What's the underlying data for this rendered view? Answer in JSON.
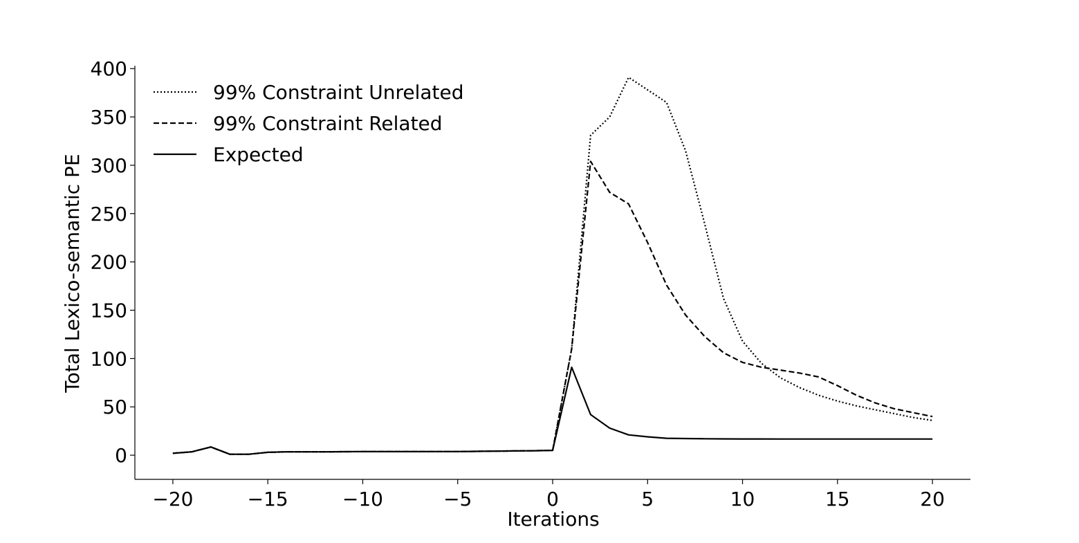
{
  "chart_data": {
    "type": "line",
    "xlabel": "Iterations",
    "ylabel": "Total Lexico-semantic PE",
    "xlim": [
      -22,
      22
    ],
    "ylim": [
      -25,
      403
    ],
    "xticks": [
      -20,
      -15,
      -10,
      -5,
      0,
      5,
      10,
      15,
      20
    ],
    "xtick_labels": [
      "−20",
      "−15",
      "−10",
      "−5",
      "0",
      "5",
      "10",
      "15",
      "20"
    ],
    "yticks": [
      0,
      50,
      100,
      150,
      200,
      250,
      300,
      350,
      400
    ],
    "ytick_labels": [
      "0",
      "50",
      "100",
      "150",
      "200",
      "250",
      "300",
      "350",
      "400"
    ],
    "grid": false,
    "legend_position": "top-left",
    "x": [
      -20,
      -19,
      -18,
      -17,
      -16,
      -15,
      -14,
      -13,
      -12,
      -11,
      -10,
      -9,
      -8,
      -7,
      -6,
      -5,
      -4,
      -3,
      -2,
      -1,
      0,
      1,
      2,
      3,
      4,
      5,
      6,
      7,
      8,
      9,
      10,
      11,
      12,
      13,
      14,
      15,
      16,
      17,
      18,
      19,
      20
    ],
    "series": [
      {
        "name": "99% Constraint Unrelated",
        "style": "dotted",
        "color": "#000000",
        "values": [
          2,
          3.5,
          8.5,
          1,
          1,
          3,
          3.5,
          3.5,
          3.5,
          3.6,
          3.7,
          3.7,
          3.7,
          3.7,
          3.8,
          3.8,
          4,
          4.2,
          4.4,
          4.6,
          5,
          110,
          331,
          350,
          391,
          378,
          365,
          315,
          240,
          162,
          118,
          95,
          80,
          70,
          62,
          56,
          51,
          47,
          43,
          39,
          36
        ]
      },
      {
        "name": "99% Constraint Related",
        "style": "dashed",
        "color": "#000000",
        "values": [
          2,
          3.5,
          8.5,
          1,
          1,
          3,
          3.5,
          3.5,
          3.5,
          3.6,
          3.7,
          3.7,
          3.7,
          3.7,
          3.8,
          3.8,
          4,
          4.2,
          4.4,
          4.6,
          5,
          110,
          304,
          272,
          260,
          220,
          176,
          145,
          123,
          106,
          96,
          91,
          88,
          85,
          81,
          72,
          62,
          54,
          48,
          44,
          40
        ]
      },
      {
        "name": "Expected",
        "style": "solid",
        "color": "#000000",
        "values": [
          2,
          3.5,
          8.5,
          1,
          1,
          3,
          3.5,
          3.5,
          3.5,
          3.6,
          3.7,
          3.7,
          3.7,
          3.7,
          3.8,
          3.8,
          4,
          4.2,
          4.4,
          4.6,
          5,
          91,
          42,
          28,
          21,
          19,
          17.5,
          17.2,
          17,
          16.9,
          16.8,
          16.8,
          16.7,
          16.7,
          16.7,
          16.7,
          16.7,
          16.7,
          16.7,
          16.7,
          16.7
        ]
      }
    ]
  }
}
